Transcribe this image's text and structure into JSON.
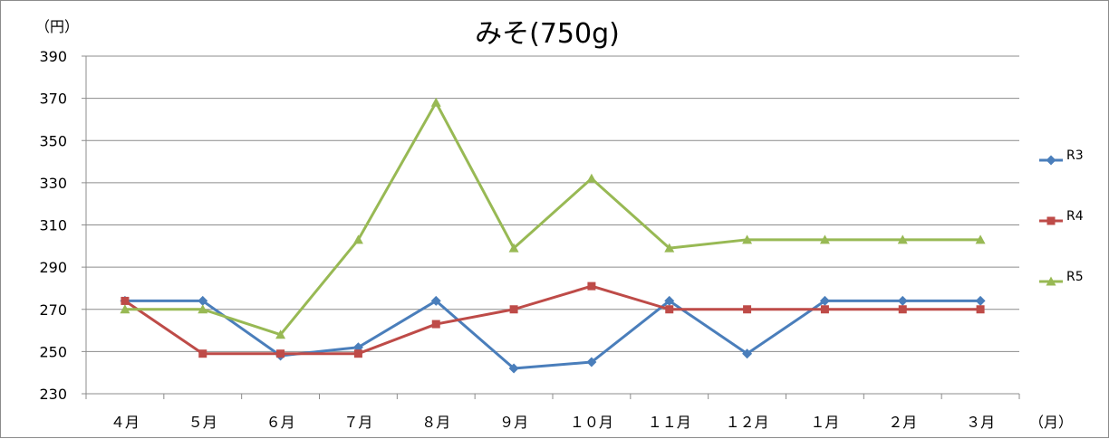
{
  "chart_data": {
    "type": "line",
    "title": "みそ(750g)",
    "y_unit": "（円）",
    "x_unit": "（月）",
    "categories": [
      "４月",
      "５月",
      "６月",
      "７月",
      "８月",
      "９月",
      "１０月",
      "１１月",
      "１２月",
      "１月",
      "２月",
      "３月"
    ],
    "y_ticks": [
      230,
      250,
      270,
      290,
      310,
      330,
      350,
      370,
      390
    ],
    "ylim": [
      230,
      390
    ],
    "grid": true,
    "legend_position": "right",
    "series": [
      {
        "name": "R3",
        "color": "#4a7ebb",
        "marker": "diamond",
        "values": [
          274,
          274,
          248,
          252,
          274,
          242,
          245,
          274,
          249,
          274,
          274,
          274
        ]
      },
      {
        "name": "R4",
        "color": "#be4b48",
        "marker": "square",
        "values": [
          274,
          249,
          249,
          249,
          263,
          270,
          281,
          270,
          270,
          270,
          270,
          270
        ]
      },
      {
        "name": "R5",
        "color": "#98b954",
        "marker": "triangle",
        "values": [
          270,
          270,
          258,
          303,
          368,
          299,
          332,
          299,
          303,
          303,
          303,
          303
        ]
      }
    ]
  }
}
